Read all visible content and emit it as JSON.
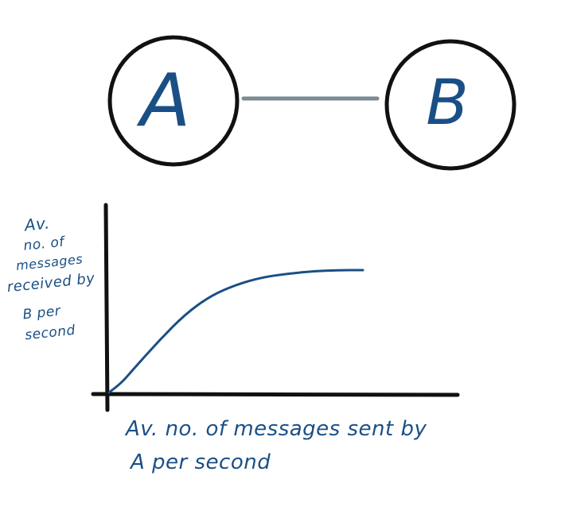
{
  "nodes": {
    "a": {
      "label": "A"
    },
    "b": {
      "label": "B"
    }
  },
  "colors": {
    "ink": "#1a4f86",
    "outline": "#111111",
    "link": "#7b8a93"
  },
  "chart": {
    "ylabel_lines": [
      "Av.",
      "no. of",
      "messages",
      "received by",
      "B per",
      "second"
    ],
    "xlabel_line1": "Av.  no. of messages sent by",
    "xlabel_line2": "A per second"
  },
  "chart_data": {
    "type": "line",
    "title": "",
    "xlabel": "Av. no. of messages sent by A per second",
    "ylabel": "Av. no. of messages received by B per second",
    "series": [
      {
        "name": "",
        "x": [
          0,
          0.05,
          0.1,
          0.2,
          0.3,
          0.4,
          0.5,
          0.6,
          0.7,
          0.8,
          0.9,
          1.0
        ],
        "y": [
          0,
          0.08,
          0.2,
          0.43,
          0.64,
          0.79,
          0.88,
          0.94,
          0.97,
          0.99,
          1.0,
          1.0
        ]
      }
    ],
    "grid": false
  }
}
